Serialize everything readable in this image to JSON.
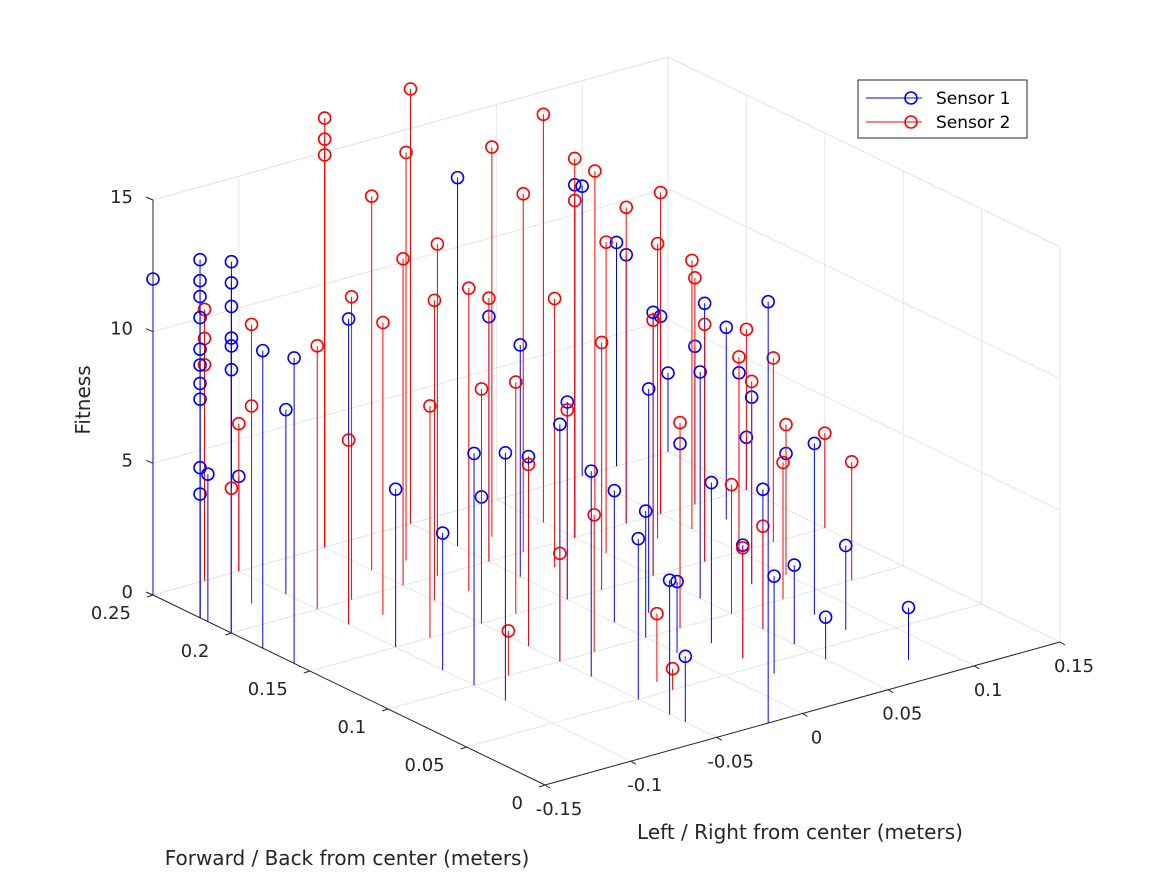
{
  "chart_data": {
    "type": "scatter",
    "subtype": "stem3",
    "xlabel": "Left / Right from center (meters)",
    "ylabel": "Forward / Back from center (meters)",
    "zlabel": "Fitness",
    "xlim": [
      -0.15,
      0.15
    ],
    "ylim": [
      0,
      0.25
    ],
    "zlim": [
      0,
      15
    ],
    "xticks": [
      "-0.15",
      "-0.1",
      "-0.05",
      "0",
      "0.05",
      "0.1",
      "0.15"
    ],
    "yticks": [
      "0",
      "0.05",
      "0.1",
      "0.15",
      "0.2",
      "0.25"
    ],
    "zticks": [
      "0",
      "5",
      "10",
      "15"
    ],
    "grid": true,
    "legend_position": "top-right",
    "series": [
      {
        "name": "Sensor 1",
        "color": "#0000ff",
        "marker": "circle",
        "points": [
          [
            -0.15,
            0.25,
            12.0
          ],
          [
            -0.15,
            0.22,
            13.6
          ],
          [
            -0.15,
            0.22,
            12.8
          ],
          [
            -0.15,
            0.22,
            12.2
          ],
          [
            -0.15,
            0.22,
            11.4
          ],
          [
            -0.15,
            0.22,
            10.2
          ],
          [
            -0.15,
            0.22,
            9.6
          ],
          [
            -0.15,
            0.22,
            8.9
          ],
          [
            -0.15,
            0.22,
            8.3
          ],
          [
            -0.15,
            0.22,
            5.7
          ],
          [
            -0.15,
            0.22,
            4.7
          ],
          [
            -0.15,
            0.215,
            5.6
          ],
          [
            -0.15,
            0.2,
            14.1
          ],
          [
            -0.15,
            0.2,
            13.3
          ],
          [
            -0.15,
            0.2,
            12.4
          ],
          [
            -0.15,
            0.2,
            11.2
          ],
          [
            -0.15,
            0.2,
            10.9
          ],
          [
            -0.15,
            0.2,
            10.0
          ],
          [
            -0.15,
            0.18,
            11.3
          ],
          [
            -0.15,
            0.16,
            11.6
          ],
          [
            -0.1,
            0.25,
            3.6
          ],
          [
            -0.1,
            0.22,
            7.0
          ],
          [
            -0.1,
            0.18,
            11.6
          ],
          [
            -0.1,
            0.15,
            6.0
          ],
          [
            -0.1,
            0.12,
            5.2
          ],
          [
            -0.1,
            0.1,
            8.8
          ],
          [
            -0.1,
            0.08,
            9.4
          ],
          [
            -0.05,
            0.15,
            4.8
          ],
          [
            -0.05,
            0.12,
            7.2
          ],
          [
            -0.05,
            0.1,
            9.0
          ],
          [
            -0.05,
            0.08,
            7.8
          ],
          [
            -0.05,
            0.05,
            6.1
          ],
          [
            -0.05,
            0.03,
            5.1
          ],
          [
            -0.05,
            0.02,
            2.5
          ],
          [
            0.0,
            0.22,
            14.0
          ],
          [
            0.0,
            0.2,
            9.3
          ],
          [
            0.0,
            0.18,
            8.8
          ],
          [
            0.0,
            0.15,
            7.5
          ],
          [
            0.0,
            0.12,
            5.0
          ],
          [
            0.0,
            0.1,
            4.8
          ],
          [
            0.0,
            0.08,
            2.7
          ],
          [
            -0.02,
            0.0,
            16.0
          ],
          [
            0.02,
            0.12,
            8.5
          ],
          [
            0.02,
            0.1,
            7.0
          ],
          [
            0.02,
            0.08,
            6.1
          ],
          [
            0.02,
            0.06,
            4.3
          ],
          [
            0.02,
            0.04,
            3.7
          ],
          [
            0.05,
            0.2,
            13.4
          ],
          [
            0.05,
            0.15,
            10.0
          ],
          [
            0.05,
            0.12,
            8.6
          ],
          [
            0.05,
            0.08,
            5.3
          ],
          [
            0.05,
            0.06,
            3.0
          ],
          [
            0.05,
            0.04,
            1.6
          ],
          [
            0.08,
            0.2,
            10.2
          ],
          [
            0.08,
            0.15,
            9.8
          ],
          [
            0.08,
            0.12,
            7.1
          ],
          [
            0.08,
            0.08,
            6.5
          ],
          [
            0.08,
            0.06,
            3.2
          ],
          [
            0.08,
            0.02,
            2.0
          ],
          [
            0.1,
            0.25,
            11.0
          ],
          [
            0.1,
            0.2,
            7.5
          ],
          [
            0.1,
            0.15,
            6.8
          ],
          [
            0.1,
            0.12,
            4.6
          ],
          [
            0.12,
            0.25,
            8.5
          ],
          [
            0.12,
            0.2,
            6.0
          ],
          [
            0.15,
            0.25,
            3.0
          ],
          [
            0.15,
            0.2,
            2.0
          ],
          [
            0.12,
            0.18,
            7.3
          ]
        ]
      },
      {
        "name": "Sensor 2",
        "color": "#ff0000",
        "marker": "circle",
        "points": [
          [
            -0.15,
            0.2,
            5.5
          ],
          [
            -0.12,
            0.25,
            10.3
          ],
          [
            -0.12,
            0.25,
            9.2
          ],
          [
            -0.12,
            0.25,
            8.2
          ],
          [
            -0.12,
            0.22,
            10.6
          ],
          [
            -0.12,
            0.22,
            7.5
          ],
          [
            -0.1,
            0.25,
            5.6
          ],
          [
            -0.1,
            0.2,
            10.0
          ],
          [
            -0.1,
            0.18,
            7.0
          ],
          [
            -0.08,
            0.2,
            11.5
          ],
          [
            -0.08,
            0.18,
            11.1
          ],
          [
            -0.08,
            0.15,
            8.8
          ],
          [
            -0.08,
            0.1,
            1.7
          ],
          [
            -0.05,
            0.25,
            16.3
          ],
          [
            -0.05,
            0.25,
            15.5
          ],
          [
            -0.05,
            0.25,
            14.9
          ],
          [
            -0.05,
            0.22,
            14.2
          ],
          [
            -0.05,
            0.2,
            12.4
          ],
          [
            -0.05,
            0.18,
            11.4
          ],
          [
            -0.05,
            0.15,
            8.9
          ],
          [
            -0.05,
            0.12,
            6.9
          ],
          [
            -0.05,
            0.1,
            4.1
          ],
          [
            -0.03,
            0.22,
            15.5
          ],
          [
            -0.03,
            0.2,
            12.6
          ],
          [
            -0.03,
            0.18,
            11.5
          ],
          [
            -0.03,
            0.15,
            8.8
          ],
          [
            -0.03,
            0.1,
            5.2
          ],
          [
            -0.03,
            0.06,
            2.6
          ],
          [
            -0.03,
            0.05,
            0.8
          ],
          [
            0.0,
            0.25,
            16.5
          ],
          [
            0.0,
            0.2,
            10.0
          ],
          [
            0.0,
            0.15,
            7.2
          ],
          [
            0.02,
            0.22,
            14.8
          ],
          [
            0.02,
            0.2,
            13.6
          ],
          [
            0.02,
            0.18,
            10.2
          ],
          [
            0.02,
            0.15,
            9.4
          ],
          [
            0.02,
            0.1,
            7.8
          ],
          [
            0.02,
            0.06,
            4.2
          ],
          [
            0.05,
            0.22,
            15.5
          ],
          [
            0.05,
            0.2,
            14.4
          ],
          [
            0.05,
            0.2,
            12.8
          ],
          [
            0.05,
            0.18,
            11.8
          ],
          [
            0.05,
            0.15,
            9.7
          ],
          [
            0.05,
            0.1,
            4.9
          ],
          [
            0.05,
            0.08,
            3.9
          ],
          [
            0.08,
            0.22,
            12.8
          ],
          [
            0.08,
            0.2,
            12.0
          ],
          [
            0.08,
            0.18,
            11.2
          ],
          [
            0.08,
            0.15,
            9.0
          ],
          [
            0.08,
            0.12,
            7.7
          ],
          [
            0.08,
            0.1,
            5.2
          ],
          [
            0.1,
            0.2,
            12.2
          ],
          [
            0.1,
            0.18,
            10.2
          ],
          [
            0.1,
            0.15,
            7.4
          ],
          [
            0.1,
            0.12,
            5.7
          ],
          [
            0.12,
            0.2,
            8.6
          ],
          [
            0.12,
            0.15,
            7.0
          ],
          [
            0.12,
            0.1,
            4.5
          ],
          [
            0.15,
            0.2,
            6.1
          ],
          [
            0.15,
            0.15,
            3.6
          ]
        ]
      }
    ]
  },
  "legend": {
    "items": [
      {
        "label": "Sensor 1",
        "color": "#0000ff"
      },
      {
        "label": "Sensor 2",
        "color": "#ff0000"
      }
    ]
  }
}
